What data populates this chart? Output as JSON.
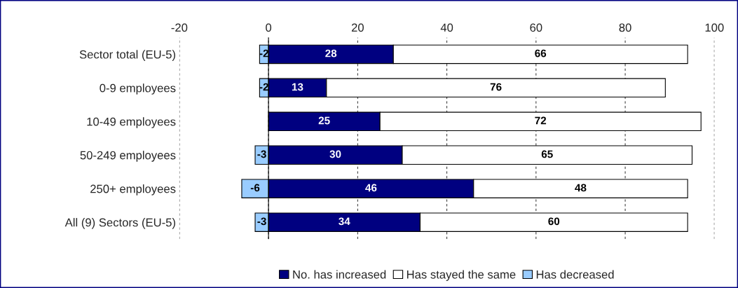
{
  "chart_data": {
    "type": "bar",
    "orientation": "horizontal",
    "stacked": true,
    "categories": [
      "Sector total (EU-5)",
      "0-9 employees",
      "10-49 employees",
      "50-249 employees",
      "250+ employees",
      "All (9) Sectors (EU-5)"
    ],
    "series": [
      {
        "name": "No. has increased",
        "color": "#000080",
        "values": [
          28,
          13,
          25,
          30,
          46,
          34
        ]
      },
      {
        "name": "Has stayed the same",
        "color": "#ffffff",
        "values": [
          66,
          76,
          72,
          65,
          48,
          60
        ]
      },
      {
        "name": "Has decreased",
        "color": "#99ccff",
        "values": [
          -2,
          -2,
          null,
          -3,
          -6,
          -3
        ]
      }
    ],
    "xlim": [
      -20,
      100
    ],
    "xticks": [
      -20,
      0,
      20,
      40,
      60,
      80,
      100
    ],
    "grid": "x",
    "legend": "bottom",
    "data_labels": true
  }
}
